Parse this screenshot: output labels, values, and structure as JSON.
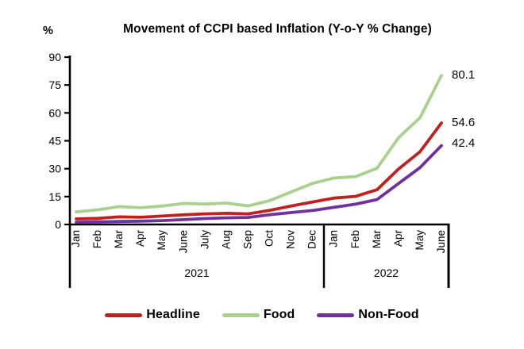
{
  "title": "Movement of CCPI based Inflation (Y-o-Y % Change)",
  "y_axis": {
    "unit_label": "%",
    "ticks": [
      90,
      75,
      60,
      45,
      30,
      15,
      0
    ],
    "range": [
      0,
      90
    ]
  },
  "x_axis": {
    "year_groups": [
      {
        "label": "2021",
        "months": 12
      },
      {
        "label": "2022",
        "months": 6
      }
    ]
  },
  "chart_data": {
    "type": "line",
    "title": "Movement of CCPI based Inflation (Y-o-Y % Change)",
    "ylabel": "%",
    "ylim": [
      0,
      90
    ],
    "grid": false,
    "legend_position": "bottom",
    "categories": [
      "Jan",
      "Feb",
      "Mar",
      "Apr",
      "May",
      "June",
      "July",
      "Aug",
      "Sep",
      "Oct",
      "Nov",
      "Dec",
      "Jan",
      "Feb",
      "Mar",
      "Apr",
      "May",
      "June"
    ],
    "category_years": [
      "2021",
      "2021",
      "2021",
      "2021",
      "2021",
      "2021",
      "2021",
      "2021",
      "2021",
      "2021",
      "2021",
      "2021",
      "2022",
      "2022",
      "2022",
      "2022",
      "2022",
      "2022"
    ],
    "series": [
      {
        "name": "Headline",
        "color": "#c2201f",
        "end_label": "54.6",
        "values": [
          3.0,
          3.3,
          4.1,
          3.9,
          4.5,
          5.2,
          5.7,
          6.0,
          5.7,
          7.6,
          9.9,
          12.1,
          14.2,
          15.1,
          18.7,
          29.8,
          39.1,
          54.6
        ]
      },
      {
        "name": "Food",
        "color": "#a9d18e",
        "end_label": "80.1",
        "values": [
          6.8,
          7.9,
          9.6,
          9.0,
          9.9,
          11.3,
          11.0,
          11.5,
          10.0,
          12.8,
          17.5,
          22.1,
          25.0,
          25.7,
          30.2,
          46.6,
          57.4,
          80.1
        ]
      },
      {
        "name": "Non-Food",
        "color": "#7030a0",
        "end_label": "42.4",
        "values": [
          1.2,
          1.4,
          1.6,
          1.8,
          2.1,
          2.6,
          3.2,
          3.6,
          3.8,
          5.2,
          6.4,
          7.5,
          9.2,
          10.9,
          13.4,
          22.0,
          30.6,
          42.4
        ]
      }
    ]
  },
  "legend": {
    "items": [
      {
        "label": "Headline"
      },
      {
        "label": "Food"
      },
      {
        "label": "Non-Food"
      }
    ]
  }
}
